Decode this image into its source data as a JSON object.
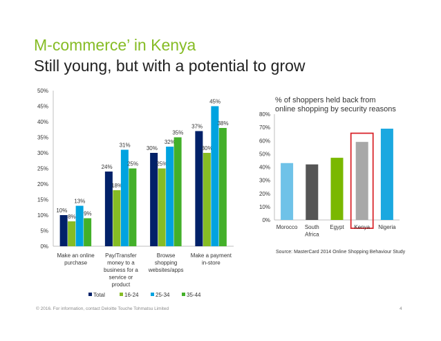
{
  "title": "M-commerce’ in Kenya",
  "subtitle": "Still young, but with a potential to grow",
  "footer": {
    "copyright": "© 2016. For information, contact Deloitte Touche Tohmatsu Limited",
    "page_number": "4"
  },
  "colors": {
    "brand_green": "#86bc25",
    "total": "#012169",
    "age_16_24": "#86bc25",
    "age_25_34": "#00a3e0",
    "age_35_44": "#43b02a",
    "morocco": "#6fc2e8",
    "south_africa": "#555555",
    "egypt": "#7ab800",
    "kenya": "#a8a8a8",
    "nigeria": "#1ba8e0",
    "highlight": "#d9262c"
  },
  "right_chart_title_line1": "% of shoppers held back from",
  "right_chart_title_line2": "online shopping by security reasons",
  "source": "Source: MasterCard 2014 Online Shopping Behaviour Study",
  "chart_data": [
    {
      "type": "bar",
      "categories": [
        [
          "Make an online",
          "purchase"
        ],
        [
          "Pay/Transfer",
          "money to a",
          "business for a",
          "service or",
          "product"
        ],
        [
          "Browse",
          "shopping",
          "websites/apps"
        ],
        [
          "Make a payment",
          "in-store"
        ]
      ],
      "series": [
        {
          "name": "Total",
          "values": [
            10,
            24,
            30,
            37
          ],
          "labels": [
            "10%",
            "24%",
            "30%",
            "37%"
          ]
        },
        {
          "name": "16-24",
          "values": [
            8,
            18,
            25,
            30
          ],
          "labels": [
            "8%",
            "18%",
            "25%",
            "30%"
          ]
        },
        {
          "name": "25-34",
          "values": [
            13,
            31,
            32,
            45
          ],
          "labels": [
            "13%",
            "31%",
            "32%",
            "45%"
          ]
        },
        {
          "name": "35-44",
          "values": [
            9,
            25,
            35,
            38
          ],
          "labels": [
            "9%",
            "25%",
            "35%",
            "38%"
          ]
        }
      ],
      "yticks": [
        "0%",
        "5%",
        "10%",
        "15%",
        "20%",
        "25%",
        "30%",
        "35%",
        "40%",
        "45%",
        "50%"
      ],
      "ylim": [
        0,
        50
      ],
      "legend": "bottom",
      "grid": false
    },
    {
      "type": "bar",
      "categories": [
        [
          "Morocco"
        ],
        [
          "South",
          "Africa"
        ],
        [
          "Egypt"
        ],
        [
          "Kenya"
        ],
        [
          "Nigeria"
        ]
      ],
      "values": [
        43,
        42,
        47,
        59,
        69
      ],
      "highlight": "Kenya",
      "yticks": [
        "0%",
        "10%",
        "20%",
        "30%",
        "40%",
        "50%",
        "60%",
        "70%",
        "80%"
      ],
      "ylim": [
        0,
        80
      ],
      "grid": false
    }
  ]
}
